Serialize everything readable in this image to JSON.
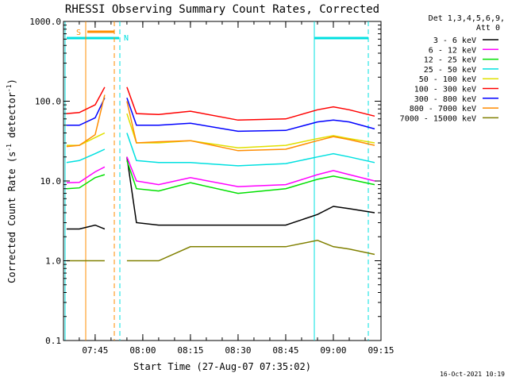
{
  "chart_data": {
    "type": "line",
    "title": "RHESSI Observing Summary Count Rates, Corrected",
    "xlabel": "Start Time (27-Aug-07 07:35:02)",
    "ylabel": "Corrected Count Rate (s⁻¹ detector⁻¹)",
    "ylabel_parts": [
      "Corrected Count Rate (s",
      "-1",
      " detector",
      "-1",
      ")"
    ],
    "yscale": "log",
    "ylim": [
      0.1,
      1000.0
    ],
    "xlim": [
      "07:35:02",
      "09:15:00"
    ],
    "x_ticks": [
      "07:45",
      "08:00",
      "08:15",
      "08:30",
      "08:45",
      "09:00",
      "09:15"
    ],
    "y_ticks": [
      "0.1",
      "1.0",
      "10.0",
      "100.0",
      "1000.0"
    ],
    "footer": "16-Oct-2021 10:19",
    "legend": {
      "header": [
        "Det 1,3,4,5,6,9,",
        "Att 0"
      ],
      "placement": "right"
    },
    "markers": {
      "s_label": "S",
      "n_label": "N"
    },
    "time_points": [
      "07:36",
      "07:40",
      "07:45",
      "07:48",
      "07:50",
      "07:52",
      "07:55",
      "07:58",
      "08:05",
      "08:15",
      "08:30",
      "08:45",
      "08:55",
      "09:00",
      "09:05",
      "09:13"
    ],
    "series": [
      {
        "name": "3 - 6 keV",
        "color": "#000000",
        "values": [
          2.5,
          2.5,
          2.8,
          2.5,
          null,
          null,
          20,
          3.0,
          2.8,
          2.8,
          2.8,
          2.8,
          3.8,
          4.8,
          4.5,
          4.0
        ]
      },
      {
        "name": "6 - 12 keV",
        "color": "#ff00ff",
        "values": [
          9.5,
          9.6,
          13.0,
          15.0,
          null,
          null,
          20,
          10.0,
          9.0,
          11.0,
          8.5,
          9.0,
          12.0,
          13.5,
          12.0,
          10.0
        ]
      },
      {
        "name": "12 - 25 keV",
        "color": "#00e000",
        "values": [
          8.0,
          8.2,
          11.0,
          12.0,
          null,
          null,
          18,
          8.0,
          7.5,
          9.5,
          7.0,
          8.0,
          10.5,
          11.5,
          10.5,
          9.0
        ]
      },
      {
        "name": "25 - 50 keV",
        "color": "#00e0e0",
        "values": [
          17,
          18,
          22,
          25,
          null,
          null,
          40,
          18,
          17,
          17,
          15.5,
          16.5,
          20,
          22,
          20,
          17
        ]
      },
      {
        "name": "50 - 100 keV",
        "color": "#e0e000",
        "values": [
          28,
          28,
          35,
          40,
          null,
          null,
          70,
          30,
          30,
          32,
          26,
          28,
          34,
          37,
          34,
          30
        ]
      },
      {
        "name": "100 - 300 keV",
        "color": "#ff0000",
        "values": [
          70,
          72,
          90,
          150,
          null,
          null,
          150,
          70,
          68,
          75,
          58,
          60,
          78,
          85,
          78,
          65
        ]
      },
      {
        "name": "300 - 800 keV",
        "color": "#0000ff",
        "values": [
          50,
          50,
          62,
          110,
          null,
          null,
          110,
          50,
          50,
          53,
          42,
          43,
          55,
          58,
          55,
          45
        ]
      },
      {
        "name": "800 - 7000 keV",
        "color": "#ff8c00",
        "values": [
          27,
          28,
          38,
          120,
          null,
          null,
          100,
          30,
          31,
          32,
          24,
          25,
          32,
          36,
          33,
          28
        ]
      },
      {
        "name": "7000 - 15000 keV",
        "color": "#808000",
        "values": [
          1.0,
          1.0,
          1.0,
          1.0,
          null,
          null,
          1.0,
          1.0,
          1.0,
          1.5,
          1.5,
          1.5,
          1.8,
          1.5,
          1.4,
          1.2
        ]
      }
    ]
  }
}
